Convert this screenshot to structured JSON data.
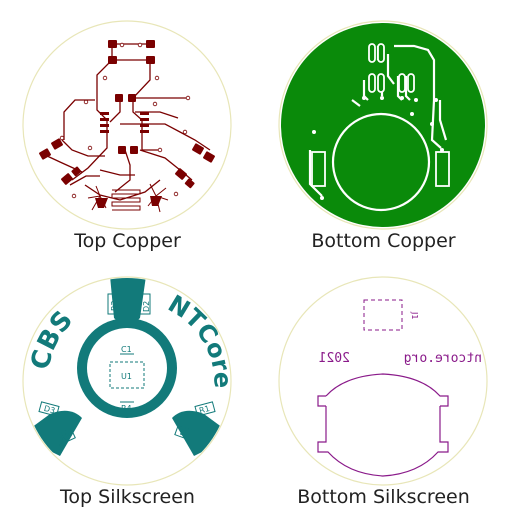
{
  "panels": {
    "top_copper": {
      "caption": "Top Copper"
    },
    "bottom_copper": {
      "caption": "Bottom Copper"
    },
    "top_silkscreen": {
      "caption": "Top Silkscreen",
      "text_left": "CBS",
      "text_right": "NTCore",
      "refs": [
        "R2",
        "D2",
        "C1",
        "U1",
        "R4",
        "D3",
        "R3",
        "R1",
        "D1"
      ]
    },
    "bottom_silkscreen": {
      "caption": "Bottom Silkscreen",
      "text_left": "2021",
      "text_right": "ntcore.org",
      "ref": "J1"
    }
  },
  "colors": {
    "board_outline": "#e8e6b8",
    "copper_top": "#7a0000",
    "copper_bottom": "#0a8a0a",
    "silk_top": "#127a7a",
    "silk_bottom": "#8a1a8a",
    "background": "#ffffff"
  }
}
